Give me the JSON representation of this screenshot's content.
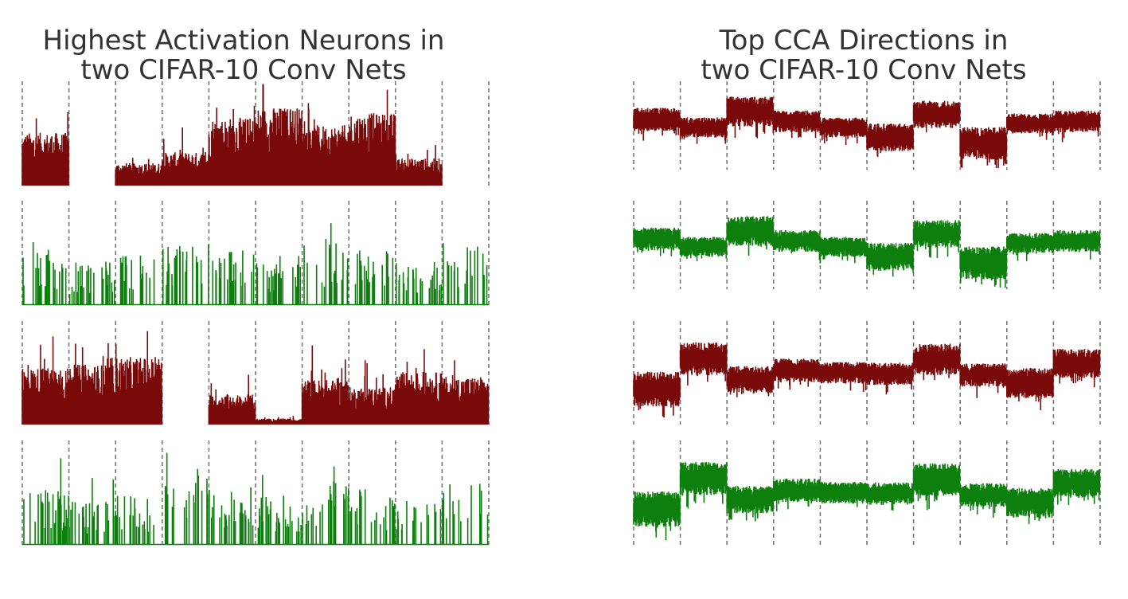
{
  "colors": {
    "red": "#7a0a0a",
    "green": "#0d7f0d",
    "divider": "#777777"
  },
  "chart_data": [
    {
      "type": "bar",
      "title": "Highest Activation Neurons in\n two CIFAR-10 Conv Nets",
      "num_classes": 10,
      "grid": false,
      "legend": "none",
      "rows": [
        {
          "color": "red",
          "style": "activation",
          "ylim": [
            0,
            1
          ],
          "class_mean": [
            0.35,
            0,
            0.15,
            0.22,
            0.45,
            0.52,
            0.4,
            0.48,
            0.18,
            0
          ]
        },
        {
          "color": "green",
          "style": "sparse",
          "ylim": [
            0,
            1
          ],
          "class_mean": [
            0.45,
            0.35,
            0.4,
            0.5,
            0.45,
            0.4,
            0.55,
            0.45,
            0.35,
            0.5
          ]
        },
        {
          "color": "red",
          "style": "activation",
          "ylim": [
            0,
            1
          ],
          "class_mean": [
            0.38,
            0.4,
            0.45,
            0,
            0.2,
            0.04,
            0.3,
            0.25,
            0.35,
            0.32
          ]
        },
        {
          "color": "green",
          "style": "sparse",
          "ylim": [
            0,
            1
          ],
          "class_mean": [
            0.45,
            0.35,
            0.4,
            0.5,
            0.45,
            0.4,
            0.55,
            0.45,
            0.35,
            0.5
          ]
        }
      ]
    },
    {
      "type": "line",
      "title": "Top CCA Directions in\n two CIFAR-10 Conv Nets",
      "num_classes": 10,
      "grid": false,
      "legend": "none",
      "rows": [
        {
          "color": "red",
          "style": "cca",
          "ylim": [
            -1,
            1
          ],
          "class_mean": [
            0.15,
            -0.05,
            0.35,
            0.1,
            -0.05,
            -0.3,
            0.28,
            -0.45,
            0.05,
            0.1
          ]
        },
        {
          "color": "green",
          "style": "cca",
          "ylim": [
            -1,
            1
          ],
          "class_mean": [
            0.15,
            -0.05,
            0.35,
            0.1,
            -0.05,
            -0.3,
            0.28,
            -0.45,
            0.05,
            0.1
          ]
        },
        {
          "color": "red",
          "style": "cca",
          "ylim": [
            -1,
            1
          ],
          "class_mean": [
            -0.35,
            0.3,
            -0.15,
            0.05,
            0.0,
            -0.02,
            0.28,
            -0.05,
            -0.22,
            0.2
          ]
        },
        {
          "color": "green",
          "style": "cca",
          "ylim": [
            -1,
            1
          ],
          "class_mean": [
            -0.35,
            0.3,
            -0.15,
            0.05,
            0.0,
            -0.02,
            0.28,
            -0.05,
            -0.22,
            0.2
          ]
        }
      ]
    }
  ]
}
